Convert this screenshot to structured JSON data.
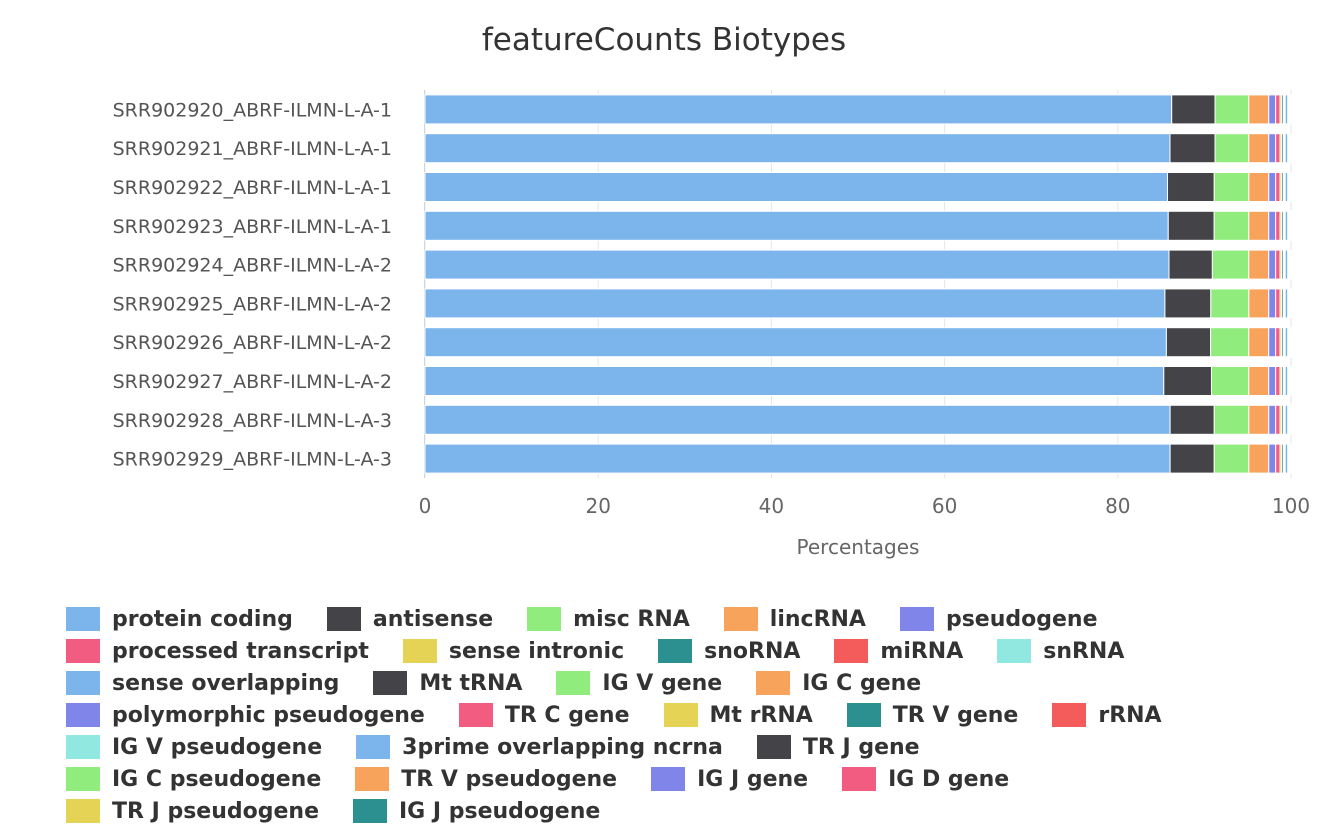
{
  "chart_data": {
    "type": "bar",
    "orientation": "horizontal",
    "stacking": "percent",
    "title": "featureCounts Biotypes",
    "xlabel": "Percentages",
    "ylabel": "",
    "xlim": [
      0,
      100
    ],
    "xticks": [
      "0",
      "20",
      "40",
      "60",
      "80",
      "100"
    ],
    "grid": true,
    "legend_placement": "bottom",
    "categories": [
      "SRR902920_ABRF-ILMN-L-A-1",
      "SRR902921_ABRF-ILMN-L-A-1",
      "SRR902922_ABRF-ILMN-L-A-1",
      "SRR902923_ABRF-ILMN-L-A-1",
      "SRR902924_ABRF-ILMN-L-A-2",
      "SRR902925_ABRF-ILMN-L-A-2",
      "SRR902926_ABRF-ILMN-L-A-2",
      "SRR902927_ABRF-ILMN-L-A-2",
      "SRR902928_ABRF-ILMN-L-A-3",
      "SRR902929_ABRF-ILMN-L-A-3"
    ],
    "series": [
      {
        "name": "protein coding",
        "color": "#7cb5ec",
        "values": [
          86.2,
          86.0,
          85.8,
          85.8,
          85.8,
          85.5,
          85.5,
          85.2,
          86.1,
          86.1
        ]
      },
      {
        "name": "antisense",
        "color": "#434348",
        "values": [
          5.0,
          5.2,
          5.4,
          5.3,
          5.0,
          5.3,
          5.1,
          5.5,
          5.1,
          5.1
        ]
      },
      {
        "name": "misc RNA",
        "color": "#90ed7d",
        "values": [
          3.9,
          3.9,
          4.0,
          4.0,
          4.2,
          4.4,
          4.4,
          4.3,
          4.0,
          4.0
        ]
      },
      {
        "name": "lincRNA",
        "color": "#f7a35c",
        "values": [
          2.3,
          2.3,
          2.3,
          2.3,
          2.3,
          2.3,
          2.3,
          2.3,
          2.3,
          2.3
        ]
      },
      {
        "name": "pseudogene",
        "color": "#8085e9",
        "values": [
          0.8,
          0.8,
          0.8,
          0.8,
          0.8,
          0.8,
          0.8,
          0.8,
          0.8,
          0.8
        ]
      },
      {
        "name": "processed transcript",
        "color": "#f15c80",
        "values": [
          0.5,
          0.5,
          0.5,
          0.5,
          0.5,
          0.5,
          0.5,
          0.5,
          0.5,
          0.5
        ]
      },
      {
        "name": "sense intronic",
        "color": "#e4d354",
        "values": [
          0.2,
          0.2,
          0.2,
          0.2,
          0.2,
          0.2,
          0.2,
          0.2,
          0.2,
          0.2
        ]
      },
      {
        "name": "snoRNA",
        "color": "#2b908f",
        "values": [
          0.2,
          0.2,
          0.2,
          0.2,
          0.2,
          0.2,
          0.2,
          0.2,
          0.2,
          0.2
        ]
      },
      {
        "name": "miRNA",
        "color": "#f45b5b",
        "values": [
          0.1,
          0.1,
          0.1,
          0.1,
          0.1,
          0.1,
          0.1,
          0.1,
          0.1,
          0.1
        ]
      },
      {
        "name": "snRNA",
        "color": "#91e8e1",
        "values": [
          0.1,
          0.1,
          0.1,
          0.1,
          0.1,
          0.1,
          0.1,
          0.1,
          0.1,
          0.1
        ]
      },
      {
        "name": "sense overlapping",
        "color": "#7cb5ec",
        "values": [
          0.3,
          0.3,
          0.3,
          0.3,
          0.3,
          0.3,
          0.3,
          0.3,
          0.3,
          0.3
        ]
      },
      {
        "name": "Mt tRNA",
        "color": "#434348",
        "values": [
          0.05,
          0.05,
          0.05,
          0.05,
          0.05,
          0.05,
          0.05,
          0.05,
          0.05,
          0.05
        ]
      },
      {
        "name": "IG V gene",
        "color": "#90ed7d",
        "values": [
          0.05,
          0.05,
          0.05,
          0.05,
          0.05,
          0.05,
          0.05,
          0.05,
          0.05,
          0.05
        ]
      },
      {
        "name": "IG C gene",
        "color": "#f7a35c",
        "values": [
          0.05,
          0.05,
          0.05,
          0.05,
          0.05,
          0.05,
          0.05,
          0.05,
          0.05,
          0.05
        ]
      },
      {
        "name": "polymorphic pseudogene",
        "color": "#8085e9",
        "values": [
          0.05,
          0.05,
          0.05,
          0.05,
          0.05,
          0.05,
          0.05,
          0.05,
          0.05,
          0.05
        ]
      },
      {
        "name": "TR C gene",
        "color": "#f15c80",
        "values": [
          0.02,
          0.02,
          0.02,
          0.02,
          0.02,
          0.02,
          0.02,
          0.02,
          0.02,
          0.02
        ]
      },
      {
        "name": "Mt rRNA",
        "color": "#e4d354",
        "values": [
          0.02,
          0.02,
          0.02,
          0.02,
          0.02,
          0.02,
          0.02,
          0.02,
          0.02,
          0.02
        ]
      },
      {
        "name": "TR V gene",
        "color": "#2b908f",
        "values": [
          0.02,
          0.02,
          0.02,
          0.02,
          0.02,
          0.02,
          0.02,
          0.02,
          0.02,
          0.02
        ]
      },
      {
        "name": "rRNA",
        "color": "#f45b5b",
        "values": [
          0.02,
          0.02,
          0.02,
          0.02,
          0.02,
          0.02,
          0.02,
          0.02,
          0.02,
          0.02
        ]
      },
      {
        "name": "IG V pseudogene",
        "color": "#91e8e1",
        "values": [
          0.01,
          0.01,
          0.01,
          0.01,
          0.01,
          0.01,
          0.01,
          0.01,
          0.01,
          0.01
        ]
      },
      {
        "name": "3prime overlapping ncrna",
        "color": "#7cb5ec",
        "values": [
          0.01,
          0.01,
          0.01,
          0.01,
          0.01,
          0.01,
          0.01,
          0.01,
          0.01,
          0.01
        ]
      },
      {
        "name": "TR J gene",
        "color": "#434348",
        "values": [
          0.01,
          0.01,
          0.01,
          0.01,
          0.01,
          0.01,
          0.01,
          0.01,
          0.01,
          0.01
        ]
      },
      {
        "name": "IG C pseudogene",
        "color": "#90ed7d",
        "values": [
          0.01,
          0.01,
          0.01,
          0.01,
          0.01,
          0.01,
          0.01,
          0.01,
          0.01,
          0.01
        ]
      },
      {
        "name": "TR V pseudogene",
        "color": "#f7a35c",
        "values": [
          0.01,
          0.01,
          0.01,
          0.01,
          0.01,
          0.01,
          0.01,
          0.01,
          0.01,
          0.01
        ]
      },
      {
        "name": "IG J gene",
        "color": "#8085e9",
        "values": [
          0.01,
          0.01,
          0.01,
          0.01,
          0.01,
          0.01,
          0.01,
          0.01,
          0.01,
          0.01
        ]
      },
      {
        "name": "IG D gene",
        "color": "#f15c80",
        "values": [
          0.01,
          0.01,
          0.01,
          0.01,
          0.01,
          0.01,
          0.01,
          0.01,
          0.01,
          0.01
        ]
      },
      {
        "name": "TR J pseudogene",
        "color": "#e4d354",
        "values": [
          0.01,
          0.01,
          0.01,
          0.01,
          0.01,
          0.01,
          0.01,
          0.01,
          0.01,
          0.01
        ]
      },
      {
        "name": "IG J pseudogene",
        "color": "#2b908f",
        "values": [
          0.01,
          0.01,
          0.01,
          0.01,
          0.01,
          0.01,
          0.01,
          0.01,
          0.01,
          0.01
        ]
      }
    ],
    "legend_rows": [
      [
        "protein coding",
        "antisense",
        "misc RNA",
        "lincRNA",
        "pseudogene"
      ],
      [
        "processed transcript",
        "sense intronic",
        "snoRNA",
        "miRNA",
        "snRNA"
      ],
      [
        "sense overlapping",
        "Mt tRNA",
        "IG V gene",
        "IG C gene"
      ],
      [
        "polymorphic pseudogene",
        "TR C gene",
        "Mt rRNA",
        "TR V gene",
        "rRNA"
      ],
      [
        "IG V pseudogene",
        "3prime overlapping ncrna",
        "TR J gene"
      ],
      [
        "IG C pseudogene",
        "TR V pseudogene",
        "IG J gene",
        "IG D gene"
      ],
      [
        "TR J pseudogene",
        "IG J pseudogene"
      ]
    ]
  }
}
